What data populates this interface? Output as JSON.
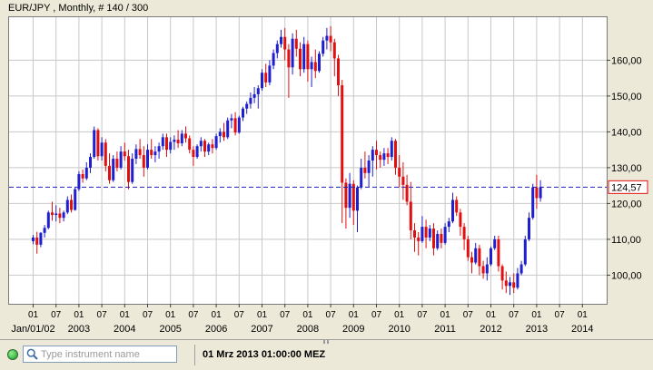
{
  "title": "EUR/JPY , Monthly, # 140 / 300",
  "status": {
    "search_placeholder": "Type instrument name",
    "datetime": "01 Mrz 2013 01:00:00 MEZ",
    "icons": [
      "status-led-icon",
      "search-icon"
    ]
  },
  "colors": {
    "up": "#1f1fd0",
    "down": "#e01010",
    "price_line": "#2020b0",
    "grid": "#c8c8c8"
  },
  "chart_data": {
    "type": "candlestick",
    "instrument": "EUR/JPY",
    "timeframe": "Monthly",
    "grid": true,
    "ylim": [
      92,
      172
    ],
    "y_ticks": [
      100,
      110,
      120,
      130,
      140,
      150,
      160
    ],
    "y_tick_labels": [
      "100,00",
      "110,00",
      "120,00",
      "130,00",
      "140,00",
      "150,00",
      "160,00"
    ],
    "current_price": 124.57,
    "current_price_label": "124,57",
    "x_start": "2002-01",
    "x_tick_months": [
      "2002-01",
      "2002-07",
      "2003-01",
      "2003-07",
      "2004-01",
      "2004-07",
      "2005-01",
      "2005-07",
      "2006-01",
      "2006-07",
      "2007-01",
      "2007-07",
      "2008-01",
      "2008-07",
      "2009-01",
      "2009-07",
      "2010-01",
      "2010-07",
      "2011-01",
      "2011-07",
      "2012-01",
      "2012-07",
      "2013-01",
      "2013-07",
      "2014-01"
    ],
    "x_tick_labels": [
      "01",
      "07",
      "01",
      "07",
      "01",
      "07",
      "01",
      "07",
      "01",
      "07",
      "01",
      "07",
      "01",
      "07",
      "01",
      "07",
      "01",
      "07",
      "01",
      "07",
      "01",
      "07",
      "01",
      "07",
      "01"
    ],
    "year_labels": [
      "Jan/01/02",
      "2003",
      "2004",
      "2005",
      "2006",
      "2007",
      "2008",
      "2009",
      "2010",
      "2011",
      "2012",
      "2013",
      "2014"
    ],
    "year_label_months": [
      "2002-01",
      "2003-01",
      "2004-01",
      "2005-01",
      "2006-01",
      "2007-01",
      "2008-01",
      "2009-01",
      "2010-01",
      "2011-01",
      "2012-01",
      "2013-01",
      "2014-01"
    ],
    "candles": [
      [
        109.5,
        111.2,
        108.6,
        110.5
      ],
      [
        110.5,
        112.1,
        106.0,
        108.5
      ],
      [
        108.5,
        112.0,
        107.8,
        111.8
      ],
      [
        111.8,
        114.0,
        110.5,
        113.2
      ],
      [
        113.2,
        118.0,
        112.8,
        117.5
      ],
      [
        117.5,
        120.5,
        115.2,
        116.8
      ],
      [
        116.8,
        119.5,
        115.0,
        117.2
      ],
      [
        117.2,
        118.8,
        114.5,
        116.0
      ],
      [
        116.0,
        118.0,
        115.0,
        117.5
      ],
      [
        117.5,
        122.0,
        117.0,
        121.0
      ],
      [
        121.0,
        122.5,
        117.5,
        118.2
      ],
      [
        118.2,
        124.5,
        118.0,
        124.0
      ],
      [
        124.0,
        129.0,
        123.5,
        128.2
      ],
      [
        128.2,
        129.5,
        125.8,
        127.0
      ],
      [
        127.0,
        131.5,
        126.5,
        130.0
      ],
      [
        130.0,
        134.0,
        128.5,
        133.0
      ],
      [
        133.0,
        141.5,
        132.5,
        140.5
      ],
      [
        140.5,
        141.0,
        132.0,
        133.2
      ],
      [
        133.2,
        138.5,
        132.0,
        137.0
      ],
      [
        137.0,
        138.0,
        129.0,
        130.5
      ],
      [
        130.5,
        134.0,
        125.5,
        126.5
      ],
      [
        126.5,
        133.5,
        126.0,
        132.5
      ],
      [
        132.5,
        134.5,
        129.0,
        130.0
      ],
      [
        130.0,
        136.0,
        129.5,
        134.5
      ],
      [
        134.5,
        137.0,
        132.0,
        133.2
      ],
      [
        133.2,
        135.0,
        124.0,
        126.0
      ],
      [
        126.0,
        134.0,
        125.5,
        132.5
      ],
      [
        132.5,
        136.5,
        131.0,
        135.2
      ],
      [
        135.2,
        138.0,
        132.5,
        133.5
      ],
      [
        133.5,
        136.0,
        127.5,
        130.0
      ],
      [
        130.0,
        136.5,
        129.5,
        135.0
      ],
      [
        135.0,
        138.0,
        132.5,
        133.5
      ],
      [
        133.5,
        136.0,
        131.5,
        134.5
      ],
      [
        134.5,
        137.0,
        132.5,
        136.0
      ],
      [
        136.0,
        139.5,
        135.0,
        138.5
      ],
      [
        138.5,
        139.5,
        133.0,
        135.0
      ],
      [
        135.0,
        138.5,
        134.0,
        137.2
      ],
      [
        137.2,
        139.0,
        135.0,
        137.8
      ],
      [
        137.8,
        140.5,
        135.5,
        136.8
      ],
      [
        136.8,
        140.5,
        136.0,
        139.5
      ],
      [
        139.5,
        141.5,
        137.0,
        138.2
      ],
      [
        138.2,
        139.0,
        134.0,
        135.0
      ],
      [
        135.0,
        136.0,
        130.5,
        133.0
      ],
      [
        133.0,
        136.5,
        132.5,
        136.0
      ],
      [
        136.0,
        138.5,
        134.5,
        137.5
      ],
      [
        137.5,
        138.0,
        133.0,
        134.5
      ],
      [
        134.5,
        137.0,
        133.5,
        136.5
      ],
      [
        136.5,
        138.0,
        134.0,
        135.5
      ],
      [
        135.5,
        139.5,
        135.0,
        138.8
      ],
      [
        138.8,
        141.0,
        137.0,
        140.0
      ],
      [
        140.0,
        142.5,
        137.5,
        138.5
      ],
      [
        138.5,
        144.0,
        138.0,
        143.2
      ],
      [
        143.2,
        145.0,
        141.0,
        143.8
      ],
      [
        143.8,
        145.5,
        139.0,
        139.8
      ],
      [
        139.8,
        144.5,
        139.5,
        144.0
      ],
      [
        144.0,
        147.0,
        143.0,
        146.5
      ],
      [
        146.5,
        148.5,
        145.0,
        147.8
      ],
      [
        147.8,
        151.0,
        146.5,
        149.5
      ],
      [
        149.5,
        152.5,
        148.0,
        150.5
      ],
      [
        150.5,
        153.0,
        146.5,
        152.2
      ],
      [
        152.2,
        157.5,
        151.5,
        156.5
      ],
      [
        156.5,
        159.0,
        152.5,
        153.8
      ],
      [
        153.8,
        160.0,
        153.0,
        158.5
      ],
      [
        158.5,
        163.0,
        157.5,
        162.0
      ],
      [
        162.0,
        165.5,
        160.5,
        164.5
      ],
      [
        164.5,
        168.5,
        163.5,
        166.5
      ],
      [
        166.5,
        169.0,
        160.0,
        163.0
      ],
      [
        163.0,
        164.5,
        149.5,
        158.0
      ],
      [
        158.0,
        167.5,
        156.0,
        166.0
      ],
      [
        166.0,
        168.5,
        161.0,
        163.2
      ],
      [
        163.2,
        165.0,
        155.5,
        157.5
      ],
      [
        157.5,
        166.5,
        156.5,
        164.5
      ],
      [
        164.5,
        165.5,
        154.0,
        157.5
      ],
      [
        157.5,
        161.0,
        152.5,
        159.5
      ],
      [
        159.5,
        163.0,
        155.0,
        157.0
      ],
      [
        157.0,
        162.5,
        156.5,
        161.8
      ],
      [
        161.8,
        166.5,
        161.0,
        165.5
      ],
      [
        165.5,
        169.0,
        163.0,
        166.8
      ],
      [
        166.8,
        169.5,
        162.5,
        165.0
      ],
      [
        165.0,
        166.0,
        155.5,
        160.5
      ],
      [
        160.5,
        161.5,
        150.0,
        153.0
      ],
      [
        153.0,
        154.5,
        114.5,
        125.8
      ],
      [
        125.8,
        127.0,
        113.0,
        118.8
      ],
      [
        118.8,
        128.5,
        116.0,
        125.5
      ],
      [
        125.5,
        126.5,
        114.0,
        118.0
      ],
      [
        118.0,
        125.0,
        112.0,
        124.5
      ],
      [
        124.5,
        132.5,
        124.0,
        130.0
      ],
      [
        130.0,
        134.5,
        127.0,
        128.5
      ],
      [
        128.5,
        133.5,
        124.5,
        132.0
      ],
      [
        132.0,
        136.0,
        127.5,
        135.0
      ],
      [
        135.0,
        137.5,
        129.5,
        133.5
      ],
      [
        133.5,
        134.5,
        130.0,
        132.2
      ],
      [
        132.2,
        135.5,
        130.5,
        134.0
      ],
      [
        134.0,
        135.5,
        131.0,
        133.0
      ],
      [
        133.0,
        138.5,
        132.0,
        137.5
      ],
      [
        137.5,
        138.0,
        128.0,
        130.0
      ],
      [
        130.0,
        133.5,
        124.5,
        127.5
      ],
      [
        127.5,
        131.5,
        121.0,
        125.2
      ],
      [
        125.2,
        128.0,
        119.5,
        120.5
      ],
      [
        120.5,
        126.0,
        110.0,
        112.5
      ],
      [
        112.5,
        114.5,
        106.5,
        110.5
      ],
      [
        110.5,
        112.0,
        105.5,
        109.5
      ],
      [
        109.5,
        116.5,
        109.0,
        113.5
      ],
      [
        113.5,
        115.5,
        107.5,
        110.5
      ],
      [
        110.5,
        114.0,
        109.5,
        113.0
      ],
      [
        113.0,
        114.5,
        105.5,
        107.5
      ],
      [
        107.5,
        112.5,
        107.0,
        111.5
      ],
      [
        111.5,
        113.0,
        107.5,
        109.0
      ],
      [
        109.0,
        114.5,
        108.5,
        113.5
      ],
      [
        113.5,
        116.0,
        112.0,
        115.0
      ],
      [
        115.0,
        123.0,
        114.5,
        121.0
      ],
      [
        121.0,
        122.0,
        116.5,
        117.5
      ],
      [
        117.5,
        118.5,
        111.0,
        113.5
      ],
      [
        113.5,
        114.5,
        107.0,
        110.0
      ],
      [
        110.0,
        111.0,
        104.0,
        105.0
      ],
      [
        105.0,
        106.5,
        100.5,
        103.5
      ],
      [
        103.5,
        109.0,
        103.0,
        107.5
      ],
      [
        107.5,
        108.5,
        100.0,
        102.5
      ],
      [
        102.5,
        104.0,
        99.0,
        100.5
      ],
      [
        100.5,
        105.0,
        98.5,
        103.0
      ],
      [
        103.0,
        108.0,
        102.5,
        107.5
      ],
      [
        107.5,
        111.0,
        107.0,
        110.0
      ],
      [
        110.0,
        111.0,
        101.0,
        102.5
      ],
      [
        102.5,
        103.0,
        96.0,
        98.5
      ],
      [
        98.5,
        101.0,
        95.0,
        97.0
      ],
      [
        97.0,
        99.5,
        94.5,
        98.0
      ],
      [
        98.0,
        100.5,
        95.0,
        96.5
      ],
      [
        96.5,
        102.0,
        96.0,
        100.5
      ],
      [
        100.5,
        104.0,
        100.0,
        103.0
      ],
      [
        103.0,
        111.0,
        102.5,
        110.0
      ],
      [
        110.0,
        117.5,
        109.5,
        116.0
      ],
      [
        116.0,
        125.5,
        115.5,
        124.5
      ],
      [
        124.5,
        128.0,
        118.5,
        121.5
      ],
      [
        121.5,
        126.5,
        120.5,
        124.5
      ]
    ]
  }
}
